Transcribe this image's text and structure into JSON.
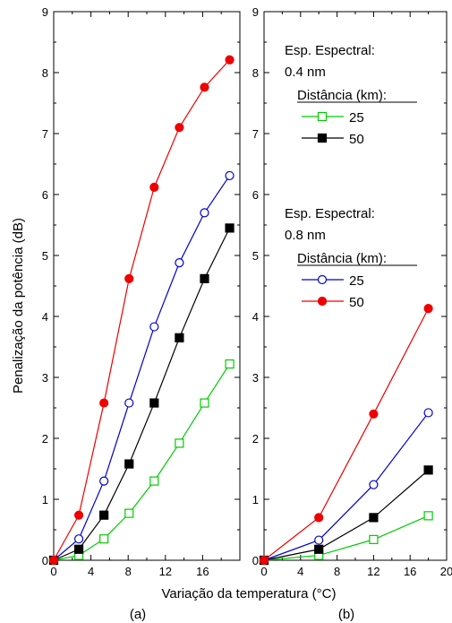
{
  "figure": {
    "ylabel": "Penalização da potência (dB)",
    "xlabel": "Variação da temperatura (°C)"
  },
  "chart_data": [
    {
      "type": "line",
      "panel_label": "(a)",
      "xlim": [
        0,
        20
      ],
      "ylim": [
        0,
        9
      ],
      "xticks": [
        0,
        4,
        8,
        12,
        16
      ],
      "yticks": [
        0,
        1,
        2,
        3,
        4,
        5,
        6,
        7,
        8,
        9
      ],
      "grid": false,
      "series": [
        {
          "group": "0.4 nm",
          "name": "25",
          "color": "#00cc00",
          "marker": "square-open",
          "x": [
            0,
            2.7,
            5.4,
            8.1,
            10.8,
            13.5,
            16.2,
            18.9
          ],
          "y": [
            0,
            0.08,
            0.35,
            0.77,
            1.3,
            1.92,
            2.58,
            3.22
          ]
        },
        {
          "group": "0.4 nm",
          "name": "50",
          "color": "#000000",
          "marker": "square-filled",
          "x": [
            0,
            2.7,
            5.4,
            8.1,
            10.8,
            13.5,
            16.2,
            18.9
          ],
          "y": [
            0,
            0.18,
            0.74,
            1.58,
            2.58,
            3.65,
            4.62,
            5.45
          ]
        },
        {
          "group": "0.8 nm",
          "name": "25",
          "color": "#0000cc",
          "marker": "circle-open",
          "x": [
            0,
            2.7,
            5.4,
            8.1,
            10.8,
            13.5,
            16.2,
            18.9
          ],
          "y": [
            0,
            0.35,
            1.3,
            2.58,
            3.83,
            4.88,
            5.7,
            6.31
          ]
        },
        {
          "group": "0.8 nm",
          "name": "50",
          "color": "#ee0000",
          "marker": "circle-filled",
          "x": [
            0,
            2.7,
            5.4,
            8.1,
            10.8,
            13.5,
            16.2,
            18.9
          ],
          "y": [
            0,
            0.74,
            2.58,
            4.62,
            6.12,
            7.1,
            7.76,
            8.21
          ]
        }
      ]
    },
    {
      "type": "line",
      "panel_label": "(b)",
      "xlim": [
        0,
        20
      ],
      "ylim": [
        0,
        9
      ],
      "xticks": [
        0,
        4,
        8,
        12,
        16,
        20
      ],
      "yticks": [
        0,
        1,
        2,
        3,
        4,
        5,
        6,
        7,
        8,
        9
      ],
      "grid": false,
      "series": [
        {
          "group": "0.4 nm",
          "name": "25",
          "color": "#00cc00",
          "marker": "square-open",
          "x": [
            0,
            6,
            12,
            18
          ],
          "y": [
            0,
            0.08,
            0.34,
            0.73
          ]
        },
        {
          "group": "0.4 nm",
          "name": "50",
          "color": "#000000",
          "marker": "square-filled",
          "x": [
            0,
            6,
            12,
            18
          ],
          "y": [
            0,
            0.18,
            0.7,
            1.48
          ]
        },
        {
          "group": "0.8 nm",
          "name": "25",
          "color": "#0000cc",
          "marker": "circle-open",
          "x": [
            0,
            6,
            12,
            18
          ],
          "y": [
            0,
            0.33,
            1.24,
            2.42
          ]
        },
        {
          "group": "0.8 nm",
          "name": "50",
          "color": "#ee0000",
          "marker": "circle-filled",
          "x": [
            0,
            6,
            12,
            18
          ],
          "y": [
            0,
            0.7,
            2.4,
            4.13
          ]
        }
      ],
      "legend": {
        "placement": "top-left",
        "groups": [
          {
            "title_line1": "Esp. Espectral:",
            "title_line2": "0.4 nm",
            "header": "Distância (km):",
            "entries": [
              {
                "label": "25",
                "color": "#00cc00",
                "marker": "square-open"
              },
              {
                "label": "50",
                "color": "#000000",
                "marker": "square-filled"
              }
            ]
          },
          {
            "title_line1": "Esp. Espectral:",
            "title_line2": "0.8 nm",
            "header": "Distância (km):",
            "entries": [
              {
                "label": "25",
                "color": "#0000cc",
                "marker": "circle-open"
              },
              {
                "label": "50",
                "color": "#ee0000",
                "marker": "circle-filled"
              }
            ]
          }
        ]
      }
    }
  ]
}
